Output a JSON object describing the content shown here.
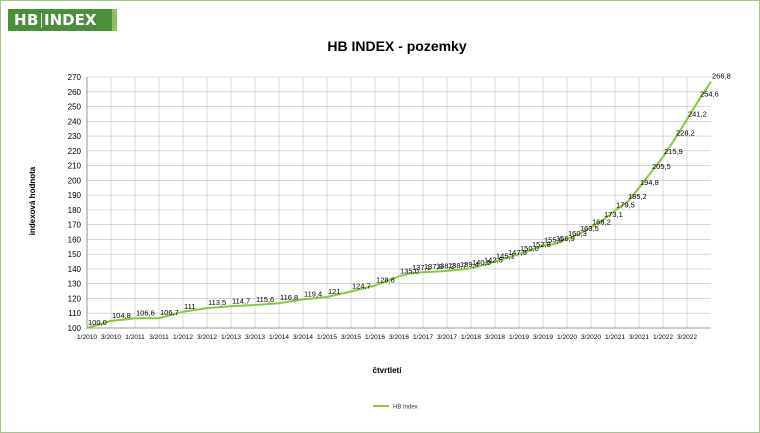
{
  "logo": {
    "brand": "HB",
    "name": "INDEX"
  },
  "chart_data": {
    "type": "line",
    "title": "HB INDEX - pozemky",
    "xlabel": "čtvrtletí",
    "ylabel": "indexová hodnota",
    "ylim": [
      100,
      270
    ],
    "yticks": [
      100,
      110,
      120,
      130,
      140,
      150,
      160,
      170,
      180,
      190,
      200,
      210,
      220,
      230,
      240,
      250,
      260,
      270
    ],
    "legend_position": "bottom",
    "grid": true,
    "colors": {
      "series": "#8cc63f",
      "grid": "#bfbfbf"
    },
    "x_tick_labels": [
      "1/2010",
      "3/2010",
      "1/2011",
      "3/2011",
      "1/2012",
      "3/2012",
      "1/2013",
      "3/2013",
      "1/2014",
      "3/2014",
      "1/2015",
      "3/2015",
      "1/2016",
      "3/2016",
      "1/2017",
      "3/2017",
      "1/2018",
      "3/2018",
      "1/2019",
      "3/2019",
      "1/2020",
      "3/2020",
      "1/2021",
      "3/2021",
      "1/2022",
      "3/2022"
    ],
    "series": [
      {
        "name": "HB Index",
        "points": [
          {
            "x": 0,
            "y": 100.0,
            "label": "100,0"
          },
          {
            "x": 2,
            "y": 104.8,
            "label": "104,8"
          },
          {
            "x": 4,
            "y": 106.6,
            "label": "106,6"
          },
          {
            "x": 6,
            "y": 106.7,
            "label": "106,7"
          },
          {
            "x": 8,
            "y": 111.0,
            "label": "111"
          },
          {
            "x": 10,
            "y": 113.5,
            "label": "113,5"
          },
          {
            "x": 12,
            "y": 114.7,
            "label": "114,7"
          },
          {
            "x": 14,
            "y": 115.6,
            "label": "115,6"
          },
          {
            "x": 16,
            "y": 116.8,
            "label": "116,8"
          },
          {
            "x": 18,
            "y": 119.4,
            "label": "119,4"
          },
          {
            "x": 20,
            "y": 121.0,
            "label": "121"
          },
          {
            "x": 22,
            "y": 124.7,
            "label": "124,7"
          },
          {
            "x": 24,
            "y": 128.8,
            "label": "128,8"
          },
          {
            "x": 26,
            "y": 135.0,
            "label": "135,0"
          },
          {
            "x": 27,
            "y": 137.1,
            "label": "137,1"
          },
          {
            "x": 28,
            "y": 137.8,
            "label": "137,8"
          },
          {
            "x": 29,
            "y": 138.2,
            "label": "138,2"
          },
          {
            "x": 30,
            "y": 138.7,
            "label": "138,7"
          },
          {
            "x": 31,
            "y": 139.4,
            "label": "139,4"
          },
          {
            "x": 32,
            "y": 140.5,
            "label": "140,5"
          },
          {
            "x": 33,
            "y": 142.5,
            "label": "142,5"
          },
          {
            "x": 34,
            "y": 145.1,
            "label": "145,1"
          },
          {
            "x": 35,
            "y": 147.5,
            "label": "147,5"
          },
          {
            "x": 36,
            "y": 150.0,
            "label": "150,0"
          },
          {
            "x": 37,
            "y": 152.8,
            "label": "152,8"
          },
          {
            "x": 38,
            "y": 155.9,
            "label": "155,9"
          },
          {
            "x": 39,
            "y": 156.9,
            "label": "156,9"
          },
          {
            "x": 40,
            "y": 160.3,
            "label": "160,3"
          },
          {
            "x": 41,
            "y": 163.5,
            "label": "163,5"
          },
          {
            "x": 42,
            "y": 168.2,
            "label": "168,2"
          },
          {
            "x": 43,
            "y": 173.1,
            "label": "173,1"
          },
          {
            "x": 44,
            "y": 179.5,
            "label": "179,5"
          },
          {
            "x": 45,
            "y": 185.2,
            "label": "185,2"
          },
          {
            "x": 46,
            "y": 194.8,
            "label": "194,8"
          },
          {
            "x": 47,
            "y": 205.5,
            "label": "205,5"
          },
          {
            "x": 48,
            "y": 215.9,
            "label": "215,9"
          },
          {
            "x": 49,
            "y": 228.2,
            "label": "228,2"
          },
          {
            "x": 50,
            "y": 241.2,
            "label": "241,2"
          },
          {
            "x": 51,
            "y": 254.6,
            "label": "254,6"
          },
          {
            "x": 52,
            "y": 266.8,
            "label": "266,8"
          }
        ]
      }
    ]
  }
}
